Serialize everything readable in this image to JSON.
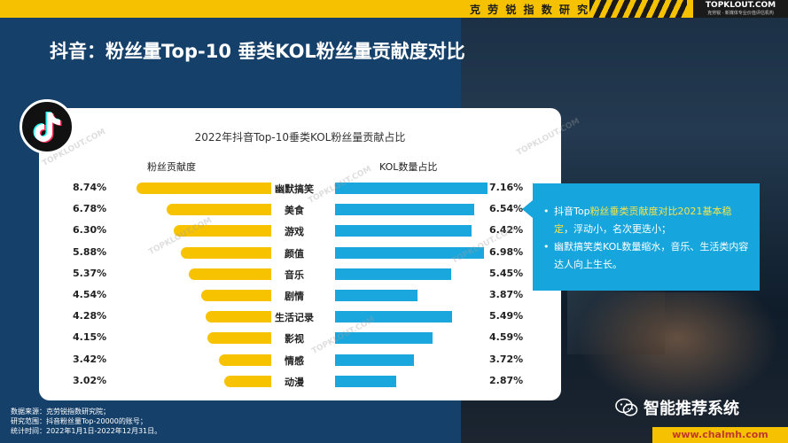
{
  "header": {
    "org": "克 劳 锐 指 数 研 究 院",
    "brand": "TOPKLOUT.COM",
    "brand_sub": "克劳锐 · 新媒体专业价值评估机构"
  },
  "page_title": "抖音：粉丝量Top-10 垂类KOL粉丝量贡献度对比",
  "watermark": "TOPKLOUT.COM",
  "chart_data": {
    "type": "bar",
    "title": "2022年抖音Top-10垂类KOL粉丝量贡献占比",
    "categories": [
      "幽默搞笑",
      "美食",
      "游戏",
      "颜值",
      "音乐",
      "剧情",
      "生活记录",
      "影视",
      "情感",
      "动漫"
    ],
    "series": [
      {
        "name": "粉丝贡献度",
        "values": [
          8.74,
          6.78,
          6.3,
          5.88,
          5.37,
          4.54,
          4.28,
          4.15,
          3.42,
          3.02
        ],
        "labels": [
          "8.74%",
          "6.78%",
          "6.30%",
          "5.88%",
          "5.37%",
          "4.54%",
          "4.28%",
          "4.15%",
          "3.42%",
          "3.02%"
        ],
        "color": "#f7c300"
      },
      {
        "name": "KOL数量占比",
        "values": [
          7.16,
          6.54,
          6.42,
          6.98,
          5.45,
          3.87,
          5.49,
          4.59,
          3.72,
          2.87
        ],
        "labels": [
          "7.16%",
          "6.54%",
          "6.42%",
          "6.98%",
          "5.45%",
          "3.87%",
          "5.49%",
          "4.59%",
          "3.72%",
          "2.87%"
        ],
        "color": "#1aa7dd"
      }
    ]
  },
  "callout": {
    "item1_pre": "抖音Top",
    "item1_hl": "粉丝垂类贡献度对比2021基本稳定",
    "item1_post": "，浮动小，名次更迭小；",
    "item2": "幽默搞笑类KOL数量缩水，音乐、生活类内容达人向上生长。"
  },
  "footnote": {
    "line1": "数据来源：克劳锐指数研究院；",
    "line2": "研究范围：抖音粉丝量Top-20000的账号；",
    "line3": "统计时间：2022年1月1日-2022年12月31日。"
  },
  "wechat": {
    "label": "智能推荐系统"
  },
  "site_url": "www.chalmh.com",
  "colors": {
    "accent": "#f6c200",
    "primary_bg": "#15406a",
    "blue_bar": "#1aa7dd",
    "yellow_bar": "#f7c300"
  }
}
